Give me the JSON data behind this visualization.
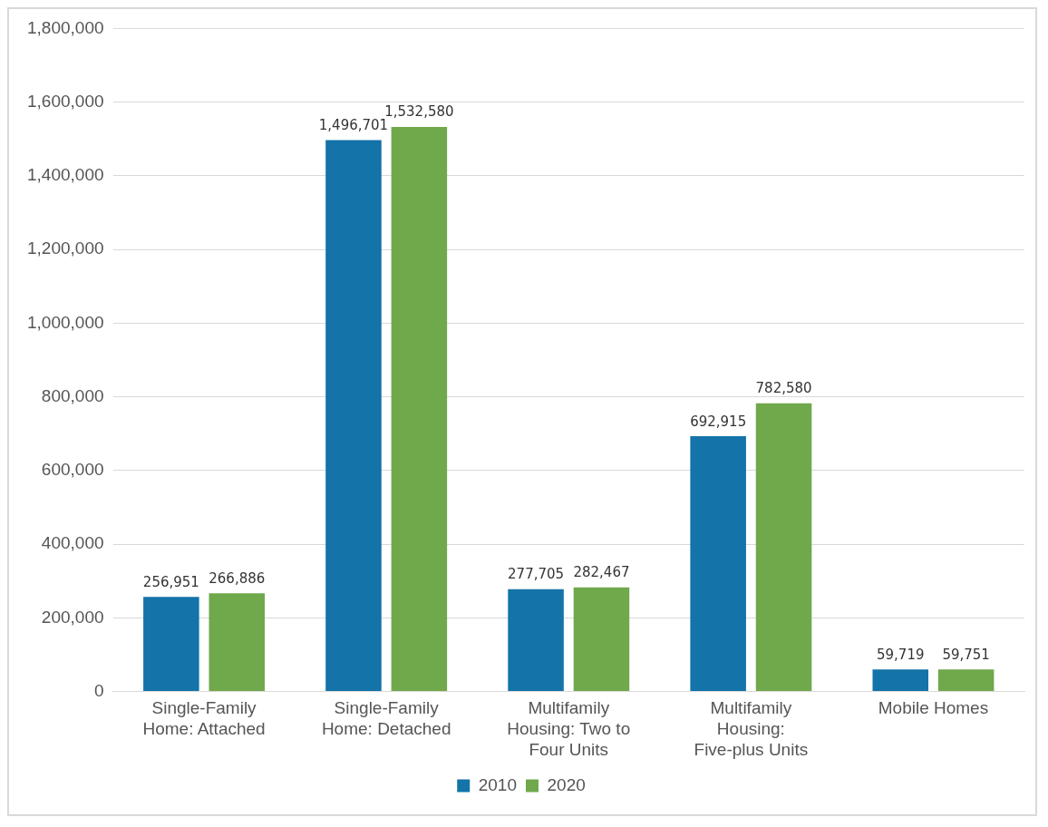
{
  "chart_data": {
    "type": "bar",
    "categories": [
      "Single-Family Home: Attached",
      "Single-Family Home: Detached",
      "Multifamily Housing: Two to Four Units",
      "Multifamily Housing: Five-plus Units",
      "Mobile Homes"
    ],
    "series": [
      {
        "name": "2010",
        "color": "#1473a8",
        "values": [
          256951,
          1496701,
          277705,
          692915,
          59719
        ],
        "value_labels": [
          "256,951",
          "1,496,701",
          "277,705",
          "692,915",
          "59,719"
        ]
      },
      {
        "name": "2020",
        "color": "#70a84c",
        "values": [
          266886,
          1532580,
          282467,
          782580,
          59751
        ],
        "value_labels": [
          "266,886",
          "1,532,580",
          "282,467",
          "782,580",
          "59,751"
        ]
      }
    ],
    "ylim": [
      0,
      1800000
    ],
    "yticks": [
      {
        "value": 0,
        "label": "0"
      },
      {
        "value": 200000,
        "label": "200,000"
      },
      {
        "value": 400000,
        "label": "400,000"
      },
      {
        "value": 600000,
        "label": "600,000"
      },
      {
        "value": 800000,
        "label": "800,000"
      },
      {
        "value": 1000000,
        "label": "1,000,000"
      },
      {
        "value": 1200000,
        "label": "1,200,000"
      },
      {
        "value": 1400000,
        "label": "1,400,000"
      },
      {
        "value": 1600000,
        "label": "1,600,000"
      },
      {
        "value": 1800000,
        "label": "1,800,000"
      }
    ],
    "grid": "y",
    "legend": "bottom"
  }
}
